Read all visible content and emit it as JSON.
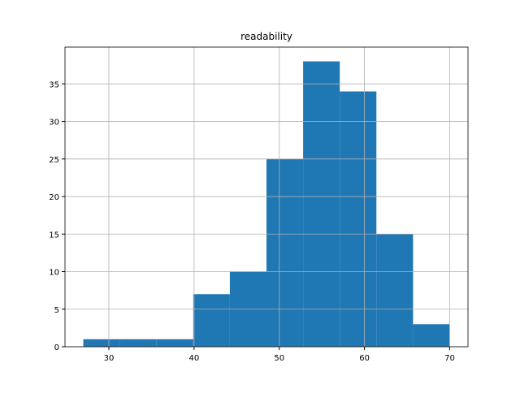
{
  "chart_data": {
    "type": "histogram",
    "title": "readability",
    "bins": [
      27,
      31.3,
      35.6,
      39.9,
      44.2,
      48.5,
      52.8,
      57.1,
      61.4,
      65.7,
      70
    ],
    "values": [
      1,
      1,
      1,
      7,
      10,
      25,
      38,
      34,
      15,
      3
    ],
    "color": "#1f77b4",
    "xlim": [
      24.85,
      72.15
    ],
    "xticks": [
      30,
      40,
      50,
      60,
      70
    ],
    "ylim": [
      0,
      39.9
    ],
    "yticks": [
      0,
      5,
      10,
      15,
      20,
      25,
      30,
      35
    ],
    "grid": true
  }
}
